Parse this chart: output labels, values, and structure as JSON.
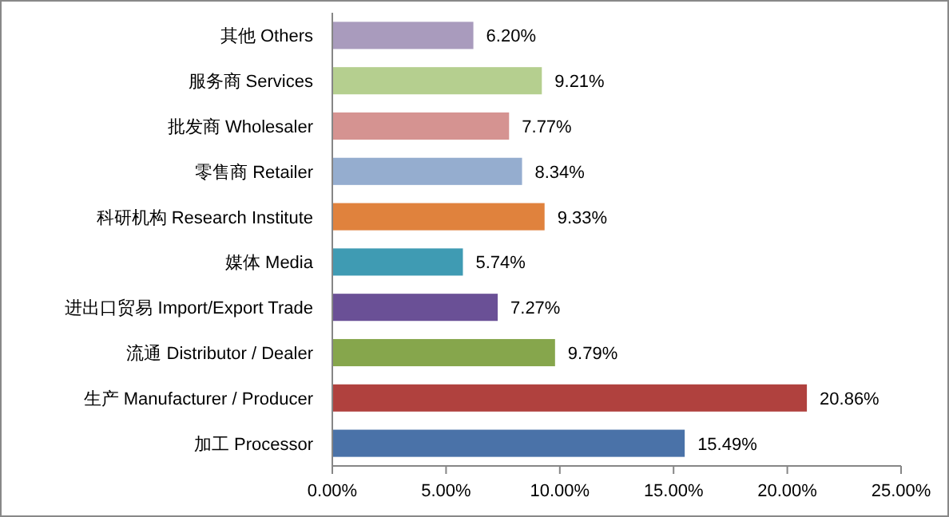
{
  "chart_data": {
    "type": "bar",
    "orientation": "horizontal",
    "categories": [
      "其他 Others",
      "服务商 Services",
      "批发商 Wholesaler",
      "零售商 Retailer",
      "科研机构 Research Institute",
      "媒体 Media",
      "进出口贸易 Import/Export Trade",
      "流通 Distributor / Dealer",
      "生产 Manufacturer / Producer",
      "加工 Processor"
    ],
    "values": [
      6.2,
      9.21,
      7.77,
      8.34,
      9.33,
      5.74,
      7.27,
      9.79,
      20.86,
      15.49
    ],
    "value_labels": [
      "6.20%",
      "9.21%",
      "7.77%",
      "8.34%",
      "9.33%",
      "5.74%",
      "7.27%",
      "9.79%",
      "20.86%",
      "15.49%"
    ],
    "colors": [
      "#a99bbd",
      "#b5cf8f",
      "#d59391",
      "#95adcf",
      "#e0823d",
      "#3f9bb3",
      "#6a5096",
      "#86a64c",
      "#b0413e",
      "#4a72a8"
    ],
    "xlim": [
      0,
      25
    ],
    "xticks": [
      {
        "value": 0,
        "label": "0.00%"
      },
      {
        "value": 5,
        "label": "5.00%"
      },
      {
        "value": 10,
        "label": "10.00%"
      },
      {
        "value": 15,
        "label": "15.00%"
      },
      {
        "value": 20,
        "label": "20.00%"
      },
      {
        "value": 25,
        "label": "25.00%"
      }
    ],
    "grid": false
  }
}
